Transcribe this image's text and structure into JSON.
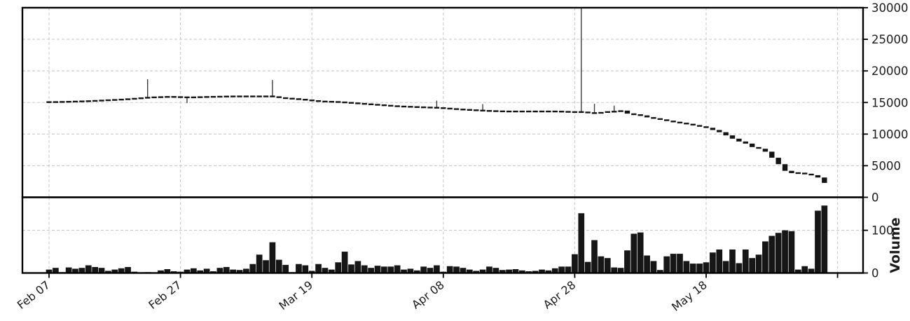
{
  "chart_data": {
    "type": "candlestick",
    "title": "",
    "legend": null,
    "x_axis": {
      "tick_labels": [
        "Feb 07",
        "Feb 27",
        "Mar 19",
        "Apr 08",
        "Apr 28",
        "May 18",
        ""
      ],
      "tick_day_index": [
        0,
        20,
        40,
        60,
        80,
        100,
        120
      ],
      "label_rotation_deg": 38,
      "grid": true
    },
    "price_panel": {
      "side": "right",
      "ylim": [
        0,
        30000
      ],
      "yticks": [
        0,
        5000,
        10000,
        15000,
        20000,
        25000,
        30000
      ],
      "grid": true
    },
    "volume_panel": {
      "ylabel": "Volume",
      "side": "right",
      "ylim": [
        0,
        175
      ],
      "yticks": [
        0,
        100
      ],
      "grid": true
    },
    "dates": [
      "Feb 07",
      "Feb 08",
      "Feb 09",
      "Feb 10",
      "Feb 11",
      "Feb 12",
      "Feb 13",
      "Feb 14",
      "Feb 15",
      "Feb 16",
      "Feb 17",
      "Feb 18",
      "Feb 19",
      "Feb 20",
      "Feb 21",
      "Feb 22",
      "Feb 23",
      "Feb 24",
      "Feb 25",
      "Feb 26",
      "Feb 27",
      "Feb 28",
      "Mar 01",
      "Mar 02",
      "Mar 03",
      "Mar 04",
      "Mar 05",
      "Mar 06",
      "Mar 07",
      "Mar 08",
      "Mar 09",
      "Mar 10",
      "Mar 11",
      "Mar 12",
      "Mar 13",
      "Mar 14",
      "Mar 15",
      "Mar 16",
      "Mar 17",
      "Mar 18",
      "Mar 19",
      "Mar 20",
      "Mar 21",
      "Mar 22",
      "Mar 23",
      "Mar 24",
      "Mar 25",
      "Mar 26",
      "Mar 27",
      "Mar 28",
      "Mar 29",
      "Mar 30",
      "Mar 31",
      "Apr 01",
      "Apr 02",
      "Apr 03",
      "Apr 04",
      "Apr 05",
      "Apr 06",
      "Apr 07",
      "Apr 08",
      "Apr 09",
      "Apr 10",
      "Apr 11",
      "Apr 12",
      "Apr 13",
      "Apr 14",
      "Apr 15",
      "Apr 16",
      "Apr 17",
      "Apr 18",
      "Apr 19",
      "Apr 20",
      "Apr 21",
      "Apr 22",
      "Apr 23",
      "Apr 24",
      "Apr 25",
      "Apr 26",
      "Apr 27",
      "Apr 28",
      "Apr 29",
      "Apr 30",
      "May 01",
      "May 02",
      "May 03",
      "May 04",
      "May 05",
      "May 06",
      "May 07",
      "May 08",
      "May 09",
      "May 10",
      "May 11",
      "May 12",
      "May 13",
      "May 14",
      "May 15",
      "May 16",
      "May 17",
      "May 18",
      "May 19",
      "May 20",
      "May 21",
      "May 22",
      "May 23",
      "May 24",
      "May 25",
      "May 26",
      "May 27",
      "May 28",
      "May 29",
      "May 30",
      "May 31",
      "Jun 01",
      "Jun 02",
      "Jun 03",
      "Jun 04",
      "Jun 05"
    ],
    "close": [
      15060,
      15080,
      15100,
      15130,
      15160,
      15190,
      15230,
      15280,
      15330,
      15380,
      15430,
      15490,
      15550,
      15630,
      15710,
      15800,
      15830,
      15870,
      15900,
      15870,
      15840,
      15800,
      15830,
      15860,
      15890,
      15910,
      15930,
      15950,
      15960,
      15960,
      15960,
      15960,
      15960,
      15960,
      15960,
      15730,
      15650,
      15570,
      15500,
      15390,
      15280,
      15170,
      15130,
      15100,
      15060,
      14980,
      14910,
      14830,
      14750,
      14680,
      14600,
      14530,
      14450,
      14380,
      14340,
      14300,
      14260,
      14220,
      14190,
      14150,
      14070,
      14000,
      13920,
      13860,
      13800,
      13750,
      13690,
      13650,
      13620,
      13580,
      13580,
      13580,
      13580,
      13580,
      13580,
      13580,
      13580,
      13580,
      13540,
      13500,
      13470,
      13500,
      13350,
      13300,
      13430,
      13550,
      13550,
      13720,
      13240,
      13050,
      12960,
      12650,
      12460,
      12300,
      12100,
      11900,
      11750,
      11600,
      11400,
      11200,
      11000,
      10650,
      10300,
      9800,
      9280,
      8830,
      8500,
      7950,
      7680,
      7220,
      6260,
      5240,
      4190,
      3830,
      3830,
      3700,
      3500,
      3130,
      2280
    ],
    "volume": [
      8,
      12,
      2,
      13,
      10,
      12,
      18,
      14,
      12,
      5,
      8,
      11,
      14,
      3,
      1,
      2,
      1,
      6,
      9,
      4,
      3,
      8,
      11,
      6,
      10,
      4,
      12,
      14,
      8,
      7,
      10,
      21,
      43,
      30,
      72,
      31,
      19,
      2,
      21,
      18,
      5,
      21,
      12,
      8,
      25,
      50,
      20,
      28,
      18,
      12,
      17,
      15,
      15,
      18,
      8,
      10,
      6,
      15,
      12,
      18,
      3,
      16,
      15,
      12,
      8,
      5,
      8,
      15,
      12,
      7,
      8,
      9,
      6,
      4,
      5,
      8,
      6,
      11,
      15,
      15,
      44,
      140,
      26,
      77,
      39,
      35,
      13,
      12,
      53,
      92,
      95,
      41,
      28,
      7,
      39,
      45,
      45,
      28,
      22,
      22,
      25,
      48,
      55,
      28,
      55,
      23,
      55,
      35,
      43,
      74,
      87,
      94,
      100,
      98,
      8,
      16,
      10,
      146,
      158
    ],
    "wicks": [
      {
        "i": 15,
        "high": 18680
      },
      {
        "i": 21,
        "low": 14900
      },
      {
        "i": 34,
        "high": 18560
      },
      {
        "i": 59,
        "high": 15300
      },
      {
        "i": 66,
        "high": 14750
      },
      {
        "i": 81,
        "high": 30000
      },
      {
        "i": 83,
        "high": 14800
      },
      {
        "i": 86,
        "high": 14500
      }
    ],
    "colors": {
      "candle_body": "#141414",
      "candle_wick": "#3d3d3d",
      "volume_bar": "#161616",
      "gridline": "#c9c9c9",
      "spine": "#000000",
      "tick_label": "#1b1b1b",
      "background": "#ffffff"
    }
  }
}
